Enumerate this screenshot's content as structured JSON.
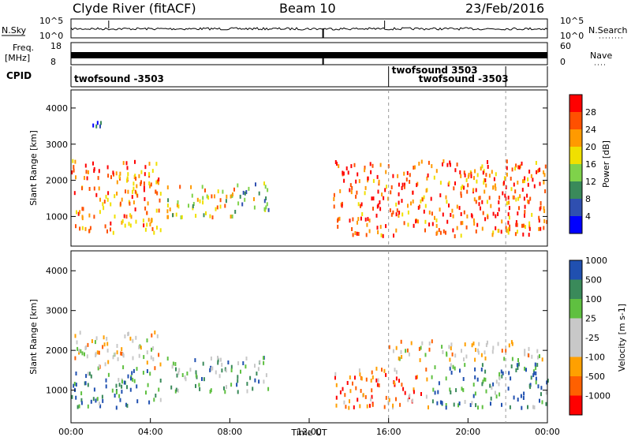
{
  "header": {
    "station": "Clyde River (fitACF)",
    "beam": "Beam 10",
    "date": "23/Feb/2016"
  },
  "top_strip": {
    "left_label": "N.Sky",
    "right_label": "N.Search",
    "left_ticks": [
      "10^5",
      "10^0"
    ],
    "right_ticks": [
      "10^5",
      "10^0"
    ]
  },
  "freq_strip": {
    "left_label_1": "Freq.",
    "left_label_2": "[MHz]",
    "right_label": "Nave",
    "left_ticks": [
      "18",
      "8"
    ],
    "right_ticks": [
      "60",
      "0"
    ]
  },
  "cpid": {
    "label": "CPID",
    "entries": [
      {
        "text": "twofsound -3503",
        "start_h": 0.0
      },
      {
        "text": "twofsound 3503",
        "start_h": 16.0
      },
      {
        "text": "twofsound -3503",
        "start_h": 21.9
      }
    ]
  },
  "time_axis": {
    "label": "Time UT",
    "ticks": [
      "00:00",
      "04:00",
      "08:00",
      "12:00",
      "16:00",
      "20:00",
      "00:00"
    ]
  },
  "colors": {
    "power_scale": [
      "#0000ff",
      "#2f4fb0",
      "#3a8a5a",
      "#7fd24a",
      "#f0e000",
      "#ff9a00",
      "#ff5000",
      "#ff0000"
    ],
    "velocity_scale": [
      "#ff0000",
      "#ff6000",
      "#ffa000",
      "#c8c8c8",
      "#c8c8c8",
      "#5fc040",
      "#3a8a5a",
      "#2050b0"
    ]
  },
  "chart_data": [
    {
      "type": "heatmap",
      "title": "Power",
      "xlabel": "Time UT",
      "ylabel": "Slant Range [km]",
      "xlim_hours": [
        0,
        24
      ],
      "ylim": [
        180,
        4500
      ],
      "yticks": [
        "1000",
        "2000",
        "3000",
        "4000"
      ],
      "colorbar_label": "Power [dB]",
      "colorbar_ticks": [
        "4",
        "8",
        "12",
        "16",
        "20",
        "24",
        "28"
      ],
      "scatter_regions": [
        {
          "t0": 0.0,
          "t1": 4.5,
          "r0": 600,
          "r1": 2600,
          "level": 0.75
        },
        {
          "t0": 4.8,
          "t1": 8.3,
          "r0": 1000,
          "r1": 1900,
          "level": 0.6
        },
        {
          "t0": 8.3,
          "t1": 10.0,
          "r0": 1200,
          "r1": 2000,
          "level": 0.4
        },
        {
          "t0": 13.2,
          "t1": 24.0,
          "r0": 500,
          "r1": 2600,
          "level": 0.8
        },
        {
          "t0": 0.5,
          "t1": 1.5,
          "r0": 3500,
          "r1": 3800,
          "level": 0.1
        }
      ]
    },
    {
      "type": "heatmap",
      "title": "Velocity",
      "xlabel": "Time UT",
      "ylabel": "Slant Range [km]",
      "xlim_hours": [
        0,
        24
      ],
      "ylim": [
        180,
        4500
      ],
      "yticks": [
        "1000",
        "2000",
        "3000",
        "4000"
      ],
      "colorbar_label": "Velocity [m s-1]",
      "colorbar_ticks": [
        "-1000",
        "-500",
        "-100",
        "-25",
        "25",
        "100",
        "500",
        "1000"
      ],
      "scatter_regions": [
        {
          "t0": 0.0,
          "t1": 4.5,
          "r0": 600,
          "r1": 1600,
          "level": 0.8
        },
        {
          "t0": 0.0,
          "t1": 4.5,
          "r0": 1600,
          "r1": 2500,
          "level": 0.45
        },
        {
          "t0": 4.8,
          "t1": 10.0,
          "r0": 1000,
          "r1": 1900,
          "level": 0.7
        },
        {
          "t0": 13.2,
          "t1": 18.0,
          "r0": 600,
          "r1": 1600,
          "level": 0.2
        },
        {
          "t0": 16.0,
          "t1": 24.0,
          "r0": 1800,
          "r1": 2300,
          "level": 0.45
        },
        {
          "t0": 18.0,
          "t1": 24.0,
          "r0": 600,
          "r1": 1700,
          "level": 0.8
        }
      ]
    }
  ]
}
